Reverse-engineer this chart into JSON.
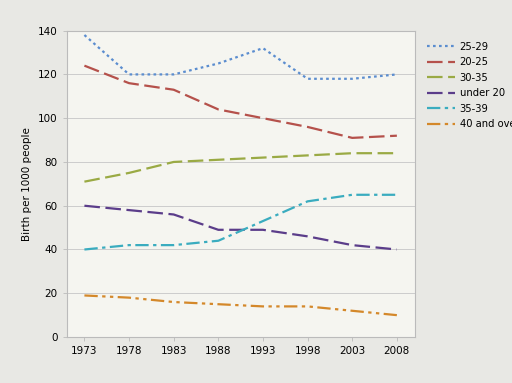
{
  "years": [
    1973,
    1978,
    1983,
    1988,
    1993,
    1998,
    2003,
    2008
  ],
  "series": {
    "25-29": {
      "values": [
        138,
        120,
        120,
        125,
        132,
        118,
        118,
        120
      ],
      "color": "#5b8dcf",
      "linestyle_key": "dotted"
    },
    "20-25": {
      "values": [
        124,
        116,
        113,
        104,
        100,
        96,
        91,
        92
      ],
      "color": "#b5514b",
      "linestyle_key": "longdash"
    },
    "30-35": {
      "values": [
        71,
        75,
        80,
        81,
        82,
        83,
        84,
        84
      ],
      "color": "#9aaa44",
      "linestyle_key": "longdash"
    },
    "under 20": {
      "values": [
        60,
        58,
        56,
        49,
        49,
        46,
        42,
        40
      ],
      "color": "#5b3d8a",
      "linestyle_key": "longdash_solid"
    },
    "35-39": {
      "values": [
        40,
        42,
        42,
        44,
        53,
        62,
        65,
        65
      ],
      "color": "#3aacbf",
      "linestyle_key": "dashdot"
    },
    "40 and over": {
      "values": [
        19,
        18,
        16,
        15,
        14,
        14,
        12,
        10
      ],
      "color": "#d4882a",
      "linestyle_key": "dashdotdot"
    }
  },
  "ylabel": "Birth per 1000 people",
  "ylim": [
    0,
    140
  ],
  "yticks": [
    0,
    20,
    40,
    60,
    80,
    100,
    120,
    140
  ],
  "xticks": [
    1973,
    1978,
    1983,
    1988,
    1993,
    1998,
    2003,
    2008
  ],
  "plot_bg": "#f5f5f0",
  "outer_bg": "#e8e8e4",
  "grid_color": "#cccccc",
  "border_color": "#bbbbbb",
  "legend_order": [
    "25-29",
    "20-25",
    "30-35",
    "under 20",
    "35-39",
    "40 and over"
  ],
  "linewidth": 1.6
}
